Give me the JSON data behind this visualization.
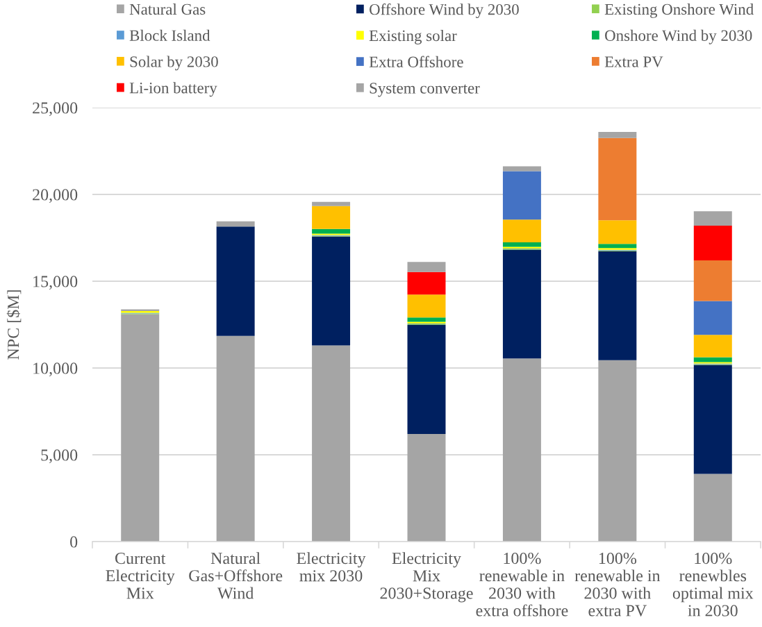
{
  "chart_data": {
    "type": "bar",
    "stacked": true,
    "ylabel": "NPC [$M]",
    "categories": [
      "Current\nElectricity\nMix",
      "Natural\nGas+Offshore\nWind",
      "Electricity\nmix 2030",
      "Electricity\nMix\n2030+Storage",
      "100%\nrenewable in\n2030 with\nextra offshore",
      "100%\nrenewable in\n2030 with\nextra PV",
      "100%\nrenewbles\noptimal mix\nin 2030"
    ],
    "series": [
      {
        "name": "Natural Gas",
        "color": "#a5a5a5",
        "values": [
          13100,
          11850,
          11300,
          6200,
          10550,
          10450,
          3900
        ]
      },
      {
        "name": "Offshore Wind by 2030",
        "color": "#002060",
        "values": [
          null,
          6300,
          6280,
          6280,
          6250,
          6280,
          6280
        ]
      },
      {
        "name": "Existing Onshore Wind",
        "color": "#92d050",
        "values": [
          40,
          null,
          40,
          40,
          40,
          40,
          40
        ]
      },
      {
        "name": "Block Island",
        "color": "#5b9bd5",
        "values": [
          40,
          null,
          40,
          40,
          40,
          40,
          40
        ]
      },
      {
        "name": "Existing solar",
        "color": "#ffff00",
        "values": [
          100,
          null,
          80,
          100,
          100,
          100,
          80
        ]
      },
      {
        "name": "Onshore Wind by 2030",
        "color": "#00b050",
        "values": [
          null,
          null,
          270,
          250,
          260,
          240,
          280
        ]
      },
      {
        "name": "Solar by 2030",
        "color": "#ffc000",
        "values": [
          null,
          null,
          1320,
          1320,
          1310,
          1360,
          1290
        ]
      },
      {
        "name": "Extra Offshore",
        "color": "#4472c4",
        "values": [
          null,
          null,
          null,
          null,
          2790,
          null,
          1950
        ]
      },
      {
        "name": "Extra PV",
        "color": "#ed7d31",
        "values": [
          null,
          null,
          null,
          null,
          null,
          4740,
          2340
        ]
      },
      {
        "name": "Li-ion battery",
        "color": "#ff0000",
        "values": [
          null,
          null,
          null,
          1300,
          null,
          null,
          2000
        ]
      },
      {
        "name": "System converter",
        "color": "#a5a5a5",
        "values": [
          100,
          300,
          240,
          580,
          280,
          350,
          830
        ]
      }
    ],
    "ylim": [
      0,
      25000
    ],
    "yticks": [
      0,
      {
        "value": 5000,
        "label": "5,000"
      },
      {
        "value": 10000,
        "label": "10,000"
      },
      {
        "value": 15000,
        "label": "15,000"
      },
      {
        "value": 20000,
        "label": "20,000"
      },
      {
        "value": 25000,
        "label": "25,000"
      }
    ],
    "grid": "y",
    "legend": "top"
  }
}
